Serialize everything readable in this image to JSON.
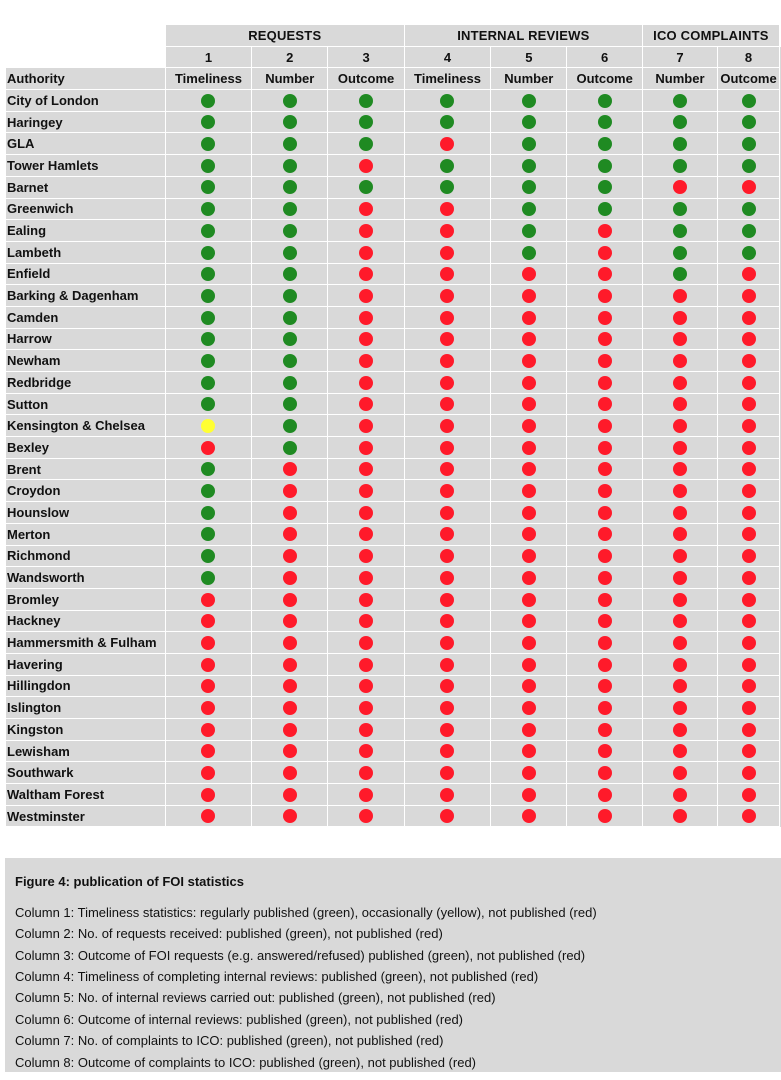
{
  "colors": {
    "green": "#1f8a22",
    "red": "#ff1a2a",
    "yellow": "#ffff33"
  },
  "header": {
    "groups": [
      {
        "label": "REQUESTS",
        "span": 3
      },
      {
        "label": "INTERNAL REVIEWS",
        "span": 3
      },
      {
        "label": "ICO COMPLAINTS",
        "span": 2
      }
    ],
    "numbers": [
      "1",
      "2",
      "3",
      "4",
      "5",
      "6",
      "7",
      "8"
    ],
    "authority_label": "Authority",
    "subheaders": [
      "Timeliness",
      "Number",
      "Outcome",
      "Timeliness",
      "Number",
      "Outcome",
      "Number",
      "Outcome"
    ]
  },
  "rows": [
    {
      "name": "City of London",
      "status": [
        "green",
        "green",
        "green",
        "green",
        "green",
        "green",
        "green",
        "green"
      ]
    },
    {
      "name": "Haringey",
      "status": [
        "green",
        "green",
        "green",
        "green",
        "green",
        "green",
        "green",
        "green"
      ]
    },
    {
      "name": "GLA",
      "status": [
        "green",
        "green",
        "green",
        "red",
        "green",
        "green",
        "green",
        "green"
      ]
    },
    {
      "name": "Tower Hamlets",
      "status": [
        "green",
        "green",
        "red",
        "green",
        "green",
        "green",
        "green",
        "green"
      ]
    },
    {
      "name": "Barnet",
      "status": [
        "green",
        "green",
        "green",
        "green",
        "green",
        "green",
        "red",
        "red"
      ]
    },
    {
      "name": "Greenwich",
      "status": [
        "green",
        "green",
        "red",
        "red",
        "green",
        "green",
        "green",
        "green"
      ]
    },
    {
      "name": "Ealing",
      "status": [
        "green",
        "green",
        "red",
        "red",
        "green",
        "red",
        "green",
        "green"
      ]
    },
    {
      "name": "Lambeth",
      "status": [
        "green",
        "green",
        "red",
        "red",
        "green",
        "red",
        "green",
        "green"
      ]
    },
    {
      "name": "Enfield",
      "status": [
        "green",
        "green",
        "red",
        "red",
        "red",
        "red",
        "green",
        "red"
      ]
    },
    {
      "name": "Barking & Dagenham",
      "status": [
        "green",
        "green",
        "red",
        "red",
        "red",
        "red",
        "red",
        "red"
      ]
    },
    {
      "name": "Camden",
      "status": [
        "green",
        "green",
        "red",
        "red",
        "red",
        "red",
        "red",
        "red"
      ]
    },
    {
      "name": "Harrow",
      "status": [
        "green",
        "green",
        "red",
        "red",
        "red",
        "red",
        "red",
        "red"
      ]
    },
    {
      "name": "Newham",
      "status": [
        "green",
        "green",
        "red",
        "red",
        "red",
        "red",
        "red",
        "red"
      ]
    },
    {
      "name": "Redbridge",
      "status": [
        "green",
        "green",
        "red",
        "red",
        "red",
        "red",
        "red",
        "red"
      ]
    },
    {
      "name": "Sutton",
      "status": [
        "green",
        "green",
        "red",
        "red",
        "red",
        "red",
        "red",
        "red"
      ]
    },
    {
      "name": "Kensington & Chelsea",
      "status": [
        "yellow",
        "green",
        "red",
        "red",
        "red",
        "red",
        "red",
        "red"
      ]
    },
    {
      "name": "Bexley",
      "status": [
        "red",
        "green",
        "red",
        "red",
        "red",
        "red",
        "red",
        "red"
      ]
    },
    {
      "name": "Brent",
      "status": [
        "green",
        "red",
        "red",
        "red",
        "red",
        "red",
        "red",
        "red"
      ]
    },
    {
      "name": "Croydon",
      "status": [
        "green",
        "red",
        "red",
        "red",
        "red",
        "red",
        "red",
        "red"
      ]
    },
    {
      "name": "Hounslow",
      "status": [
        "green",
        "red",
        "red",
        "red",
        "red",
        "red",
        "red",
        "red"
      ]
    },
    {
      "name": "Merton",
      "status": [
        "green",
        "red",
        "red",
        "red",
        "red",
        "red",
        "red",
        "red"
      ]
    },
    {
      "name": "Richmond",
      "status": [
        "green",
        "red",
        "red",
        "red",
        "red",
        "red",
        "red",
        "red"
      ]
    },
    {
      "name": "Wandsworth",
      "status": [
        "green",
        "red",
        "red",
        "red",
        "red",
        "red",
        "red",
        "red"
      ]
    },
    {
      "name": "Bromley",
      "status": [
        "red",
        "red",
        "red",
        "red",
        "red",
        "red",
        "red",
        "red"
      ]
    },
    {
      "name": "Hackney",
      "status": [
        "red",
        "red",
        "red",
        "red",
        "red",
        "red",
        "red",
        "red"
      ]
    },
    {
      "name": "Hammersmith & Fulham",
      "status": [
        "red",
        "red",
        "red",
        "red",
        "red",
        "red",
        "red",
        "red"
      ]
    },
    {
      "name": "Havering",
      "status": [
        "red",
        "red",
        "red",
        "red",
        "red",
        "red",
        "red",
        "red"
      ]
    },
    {
      "name": "Hillingdon",
      "status": [
        "red",
        "red",
        "red",
        "red",
        "red",
        "red",
        "red",
        "red"
      ]
    },
    {
      "name": "Islington",
      "status": [
        "red",
        "red",
        "red",
        "red",
        "red",
        "red",
        "red",
        "red"
      ]
    },
    {
      "name": "Kingston",
      "status": [
        "red",
        "red",
        "red",
        "red",
        "red",
        "red",
        "red",
        "red"
      ]
    },
    {
      "name": "Lewisham",
      "status": [
        "red",
        "red",
        "red",
        "red",
        "red",
        "red",
        "red",
        "red"
      ]
    },
    {
      "name": "Southwark",
      "status": [
        "red",
        "red",
        "red",
        "red",
        "red",
        "red",
        "red",
        "red"
      ]
    },
    {
      "name": "Waltham Forest",
      "status": [
        "red",
        "red",
        "red",
        "red",
        "red",
        "red",
        "red",
        "red"
      ]
    },
    {
      "name": "Westminster",
      "status": [
        "red",
        "red",
        "red",
        "red",
        "red",
        "red",
        "red",
        "red"
      ]
    }
  ],
  "legend": {
    "title": "Figure 4: publication of FOI statistics",
    "lines": [
      "Column 1: Timeliness statistics: regularly published (green), occasionally (yellow), not published (red)",
      "Column 2: No. of requests received: published (green), not published (red)",
      "Column 3: Outcome of FOI requests (e.g. answered/refused) published (green), not published (red)",
      "Column 4: Timeliness of completing internal reviews: published (green), not published (red)",
      "Column 5: No. of internal reviews carried out: published (green), not published (red)",
      "Column 6: Outcome of internal reviews: published (green), not published (red)",
      "Column 7: No. of complaints to ICO: published (green), not published (red)",
      "Column 8: Outcome of complaints to ICO: published (green), not published (red)"
    ]
  }
}
